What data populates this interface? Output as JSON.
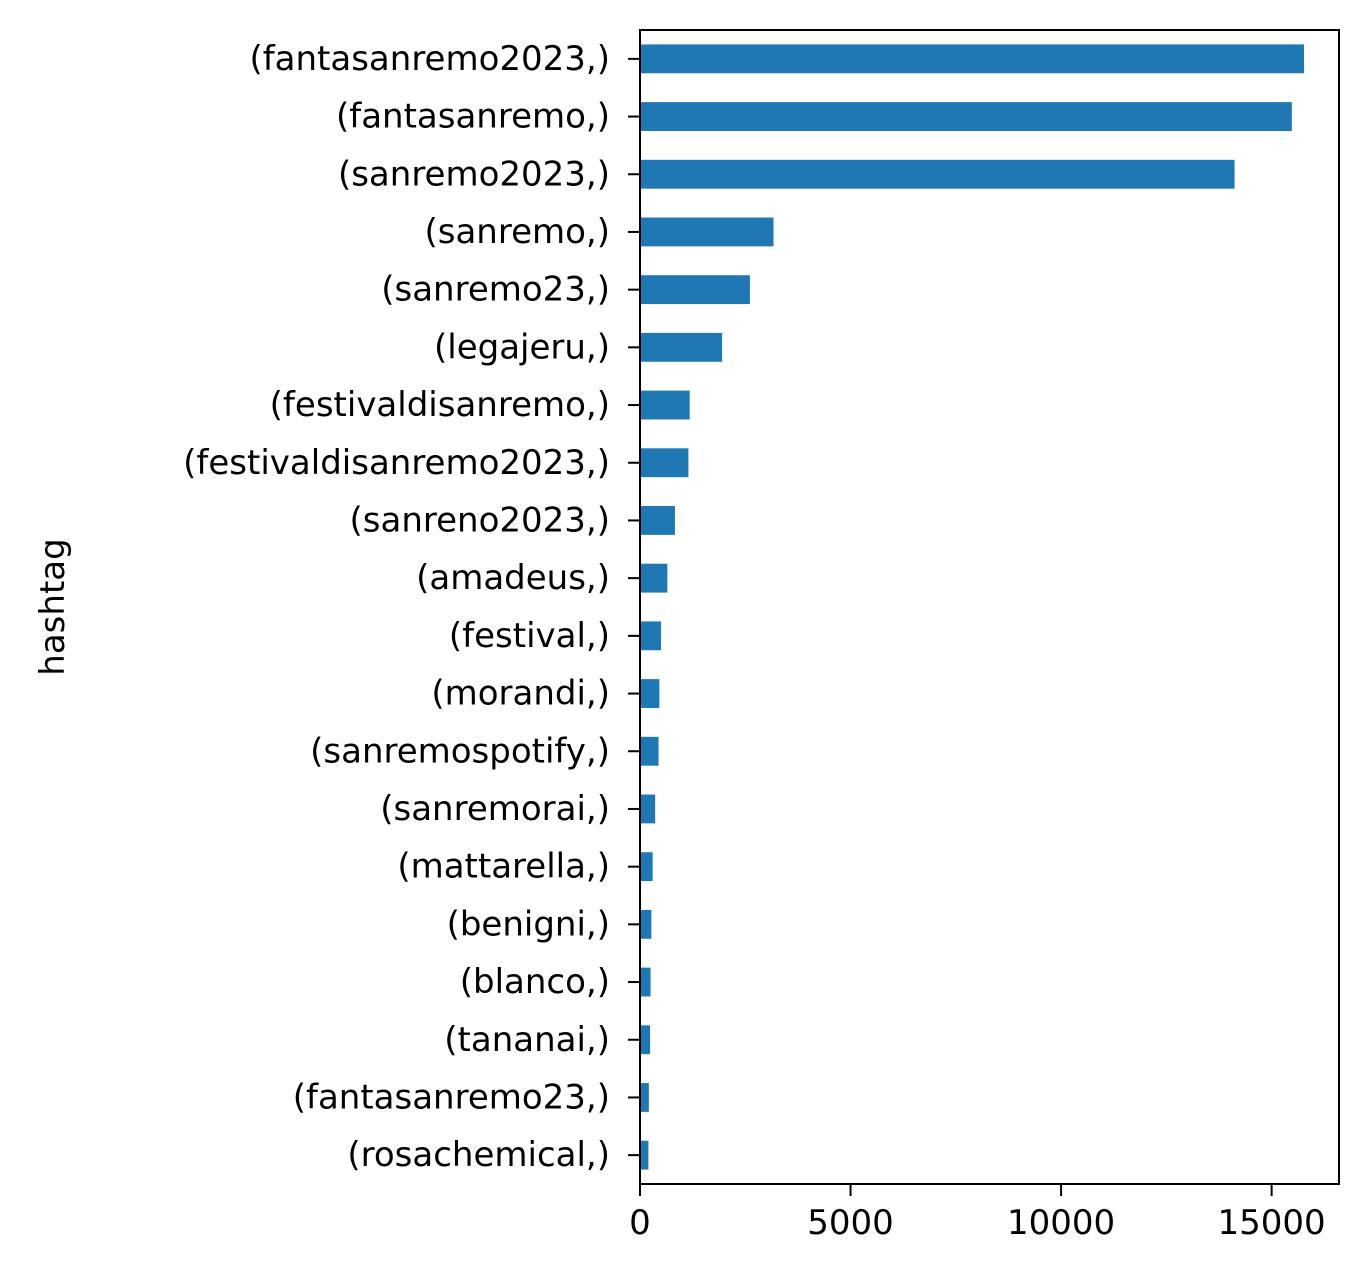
{
  "chart_data": {
    "type": "bar",
    "orientation": "horizontal",
    "title": "",
    "xlabel": "",
    "ylabel": "hashtag",
    "xlim": [
      0,
      16600
    ],
    "x_ticks": [
      0,
      5000,
      10000,
      15000
    ],
    "x_tick_labels": [
      "0",
      "5000",
      "10000",
      "15000"
    ],
    "grid": false,
    "legend": "none",
    "bar_color": "#1f77b4",
    "categories": [
      "(fantasanremo2023,)",
      "(fantasanremo,)",
      "(sanremo2023,)",
      "(sanremo,)",
      "(sanremo23,)",
      "(legajeru,)",
      "(festivaldisanremo,)",
      "(festivaldisanremo2023,)",
      "(sanreno2023,)",
      "(amadeus,)",
      "(festival,)",
      "(morandi,)",
      "(sanremospotify,)",
      "(sanremorai,)",
      "(mattarella,)",
      "(benigni,)",
      "(blanco,)",
      "(tananai,)",
      "(fantasanremo23,)",
      "(rosachemical,)"
    ],
    "values": [
      15770,
      15480,
      14120,
      3170,
      2610,
      1950,
      1180,
      1150,
      830,
      650,
      500,
      460,
      440,
      360,
      300,
      270,
      250,
      240,
      210,
      200
    ]
  }
}
